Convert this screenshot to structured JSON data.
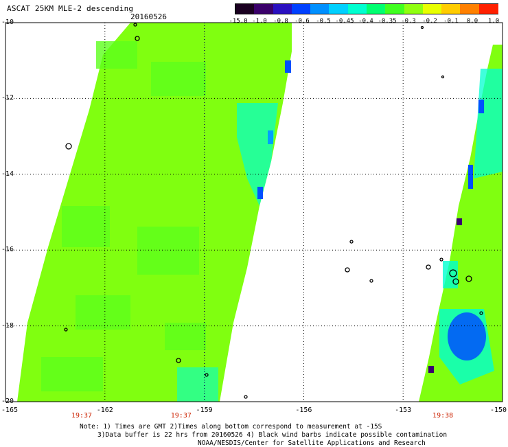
{
  "header": {
    "title": "ASCAT 25KM MLE-2 descending",
    "date": "20160526"
  },
  "colorbar": {
    "colors": [
      "#1a0020",
      "#3a006a",
      "#2a10c0",
      "#0040ff",
      "#0090ff",
      "#00d0ff",
      "#00ffd0",
      "#00ff70",
      "#40ff20",
      "#90ff10",
      "#e8ff00",
      "#ffcc00",
      "#ff8000",
      "#ff2000"
    ],
    "tick_labels": [
      "-15.0",
      "-1.0",
      "-0.8",
      "-0.6",
      "-0.5",
      "-0.45",
      "-0.4",
      "-0.35",
      "-0.3",
      "-0.2",
      "-0.1",
      "0.0",
      "1.0"
    ]
  },
  "axes": {
    "lat_labels": [
      "-10",
      "-12",
      "-14",
      "-16",
      "-18",
      "-20"
    ],
    "lon_labels": [
      "-165",
      "-162",
      "-159",
      "-156",
      "-153",
      "-150"
    ],
    "lat_range": [
      -20,
      -10
    ],
    "lon_range": [
      -165,
      -150
    ]
  },
  "time_labels": [
    {
      "lon": -162.7,
      "text": "19:37"
    },
    {
      "lon": -159.7,
      "text": "19:37"
    },
    {
      "lon": -151.8,
      "text": "19:38"
    }
  ],
  "notes": [
    "Note: 1) Times are GMT 2)Times along bottom correspond to measurement at -15S",
    "3)Data buffer is 22 hrs from 20160526 4) Black wind barbs indicate possible contamination",
    "NOAA/NESDIS/Center for Satellite Applications and Research"
  ],
  "colors": {
    "swath_main": "#80ff10",
    "swath_alt": "#5cff1c",
    "low_cyan": "#00ffd0",
    "low_blue": "#0050ff",
    "very_low": "#3a0070"
  }
}
